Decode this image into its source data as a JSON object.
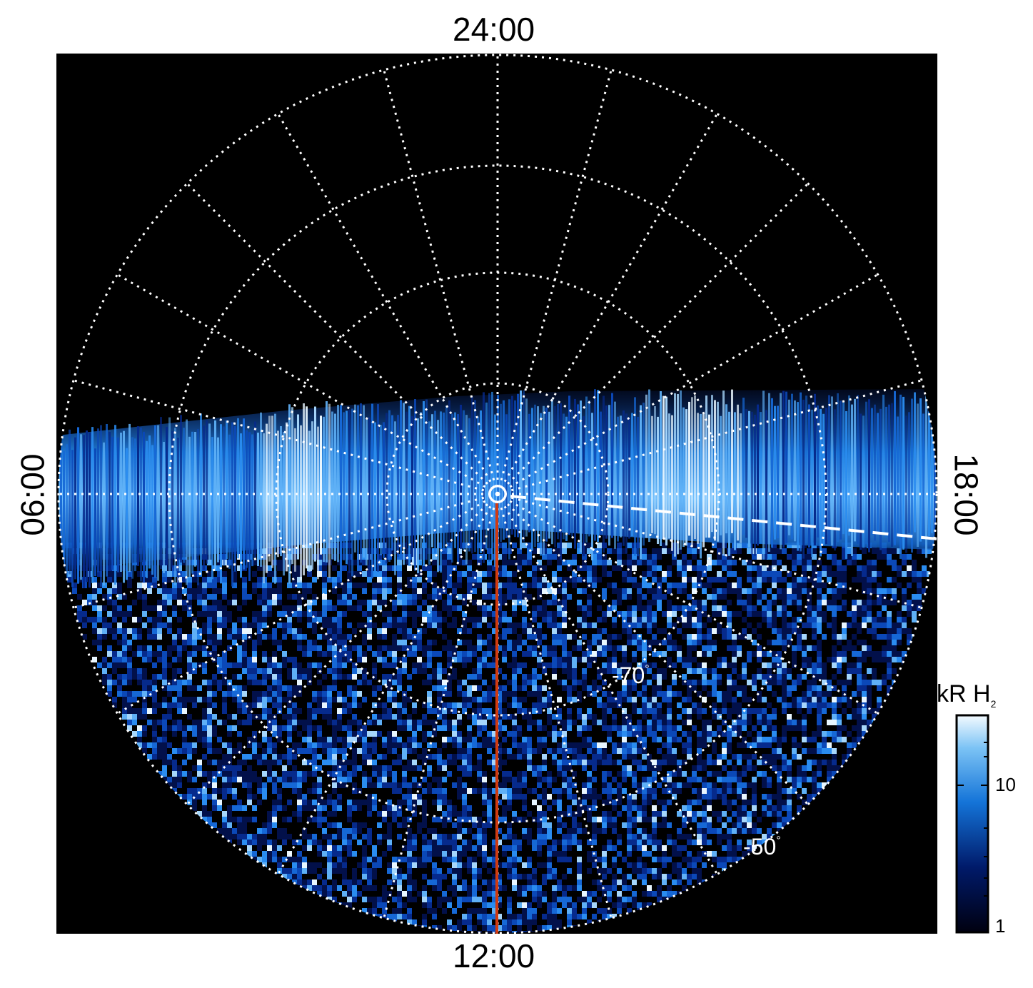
{
  "figure": {
    "time_labels": {
      "top": "24:00",
      "bottom": "12:00",
      "left": "06:00",
      "right": "18:00"
    },
    "latitude_labels": [
      {
        "value": "-70",
        "unit": "°"
      },
      {
        "value": "-50",
        "unit": "°"
      }
    ],
    "colorbar": {
      "title": "kR H",
      "title_subscript": "2",
      "ticks": [
        "10",
        "1"
      ],
      "scale": "log"
    },
    "colors": {
      "background": "#000000",
      "grid": "#ffffff",
      "meridian_line": "#d03a10",
      "aurora_low": "#00003a",
      "aurora_mid": "#1e7ad8",
      "aurora_high": "#eaf6ff"
    }
  }
}
